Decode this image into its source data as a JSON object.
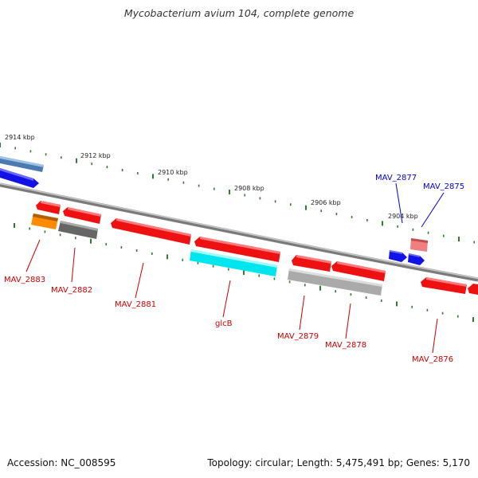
{
  "header": {
    "title": "Mycobacterium avium 104, complete genome"
  },
  "footer": {
    "accession": "Accession: NC_008595",
    "summary": "Topology: circular; Length: 5,475,491 bp; Genes: 5,170"
  },
  "colors": {
    "backbone": "#8c8c8c",
    "tick": "#2e7d2e",
    "forward_label": "#0000cc",
    "reverse_label": "#cc0000",
    "kbp_label": "#222222"
  },
  "map": {
    "kbp_labels": [
      "2914 kbp",
      "2912 kbp",
      "2910 kbp",
      "2908 kbp",
      "2906 kbp",
      "2904 kbp"
    ],
    "forward_genes": [
      {
        "label": "MAV_2877",
        "color": "#1010e0"
      },
      {
        "label": "MAV_2875",
        "color": "#1010e0"
      }
    ],
    "reverse_genes": [
      {
        "label": "MAV_2883",
        "color": "#ff8c00"
      },
      {
        "label": "MAV_2882",
        "color": "#666666"
      },
      {
        "label": "MAV_2881",
        "color": "#ee1111"
      },
      {
        "label": "glcB",
        "color": "#00e5ee"
      },
      {
        "label": "MAV_2879",
        "color": "#aaaaaa"
      },
      {
        "label": "MAV_2878",
        "color": "#ee1111"
      },
      {
        "label": "MAV_2876",
        "color": "#ee1111"
      }
    ]
  }
}
